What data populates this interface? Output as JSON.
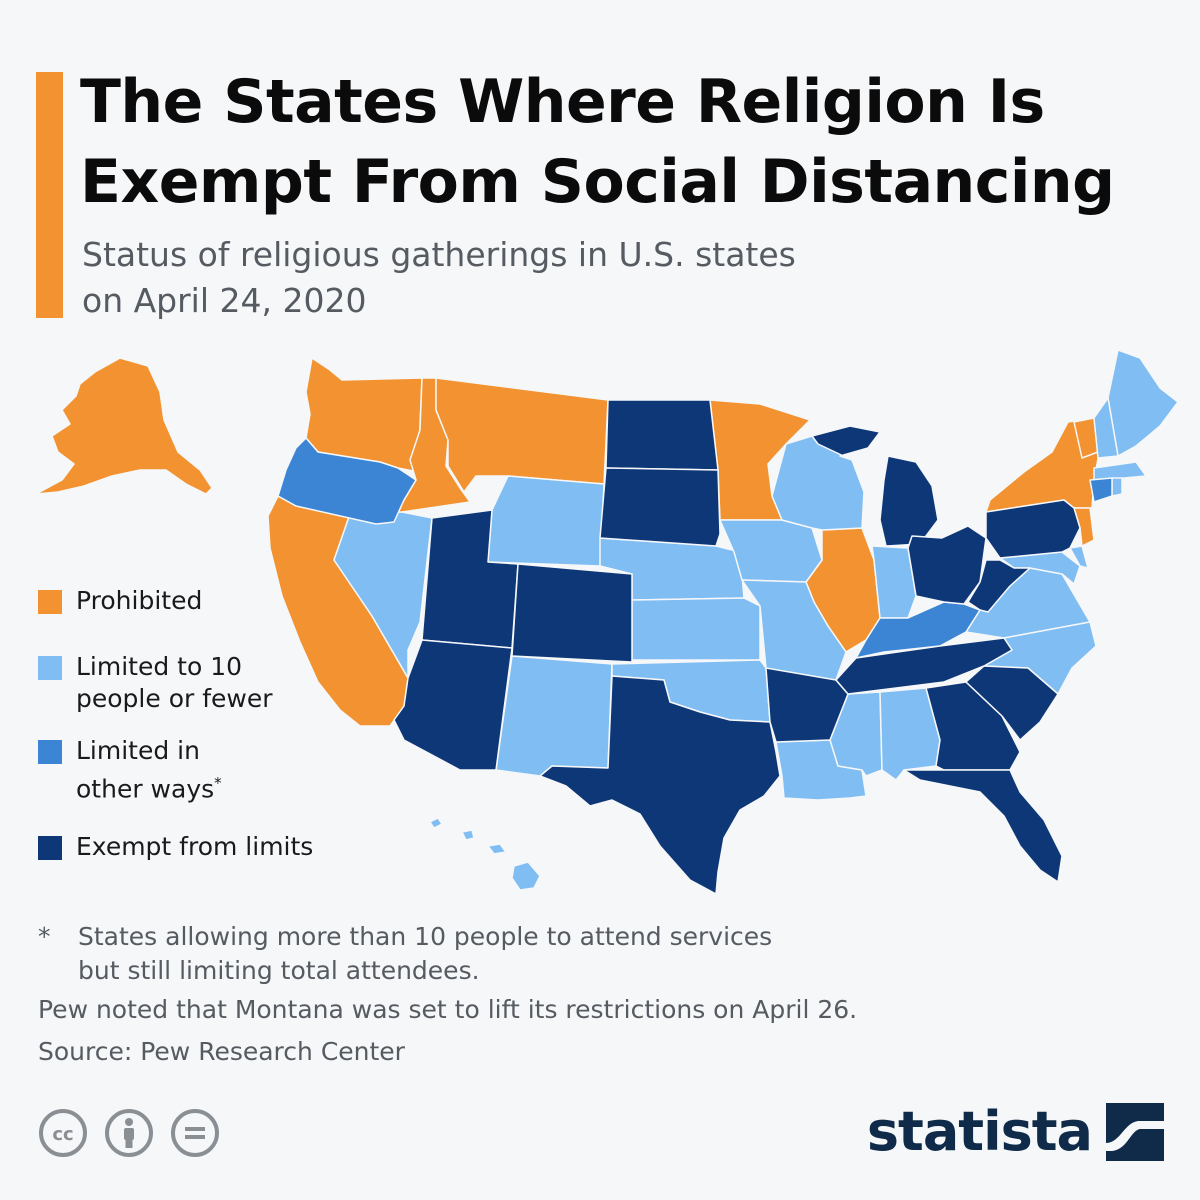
{
  "title_lines": [
    "The States Where Religion Is",
    "Exempt From Social Distancing"
  ],
  "subtitle_lines": [
    "Status of religious gatherings in U.S. states",
    "on April 24, 2020"
  ],
  "colors": {
    "accent": "#f39230",
    "prohibited": "#f39230",
    "limited_10": "#7fbdf2",
    "limited_other": "#3b85d4",
    "exempt": "#0e3778",
    "background": "#f5f7f9"
  },
  "legend": [
    {
      "label": "Prohibited",
      "category": "prohibited"
    },
    {
      "label": "Limited to 10\npeople or fewer",
      "category": "limited_10"
    },
    {
      "label": "Limited in\nother ways",
      "category": "limited_other",
      "footnote_mark": "*"
    },
    {
      "label": "Exempt from limits",
      "category": "exempt"
    }
  ],
  "map": {
    "states": {
      "AK": "prohibited",
      "WA": "prohibited",
      "ID": "prohibited",
      "MT": "prohibited",
      "CA": "prohibited",
      "MN": "prohibited",
      "IL": "prohibited",
      "NY": "prohibited",
      "VT": "prohibited",
      "NJ": "prohibited",
      "NV": "limited_10",
      "WY": "limited_10",
      "NE": "limited_10",
      "KS": "limited_10",
      "NM": "limited_10",
      "OK": "limited_10",
      "IA": "limited_10",
      "MO": "limited_10",
      "WI": "limited_10",
      "IN": "limited_10",
      "LA": "limited_10",
      "MS": "limited_10",
      "AL": "limited_10",
      "VA": "limited_10",
      "NC": "limited_10",
      "MD": "limited_10",
      "DE": "limited_10",
      "ME": "limited_10",
      "NH": "limited_10",
      "MA": "limited_10",
      "RI": "limited_10",
      "HI": "limited_10",
      "OR": "limited_other",
      "KY": "limited_other",
      "CT": "limited_other",
      "UT": "exempt",
      "AZ": "exempt",
      "CO": "exempt",
      "ND": "exempt",
      "SD": "exempt",
      "TX": "exempt",
      "AR": "exempt",
      "TN": "exempt",
      "MI": "exempt",
      "OH": "exempt",
      "WV": "exempt",
      "PA": "exempt",
      "GA": "exempt",
      "SC": "exempt",
      "FL": "exempt"
    }
  },
  "notes": {
    "star": "*",
    "asterisk_text": "States allowing more than 10 people to attend services\nbut still limiting total attendees.",
    "pew": "Pew noted that Montana was set to lift its restrictions on April 26.",
    "source": "Source: Pew Research Center"
  },
  "brand": {
    "name": "statista"
  },
  "license_icons": [
    "cc-icon",
    "attribution-icon",
    "no-derivatives-icon"
  ]
}
